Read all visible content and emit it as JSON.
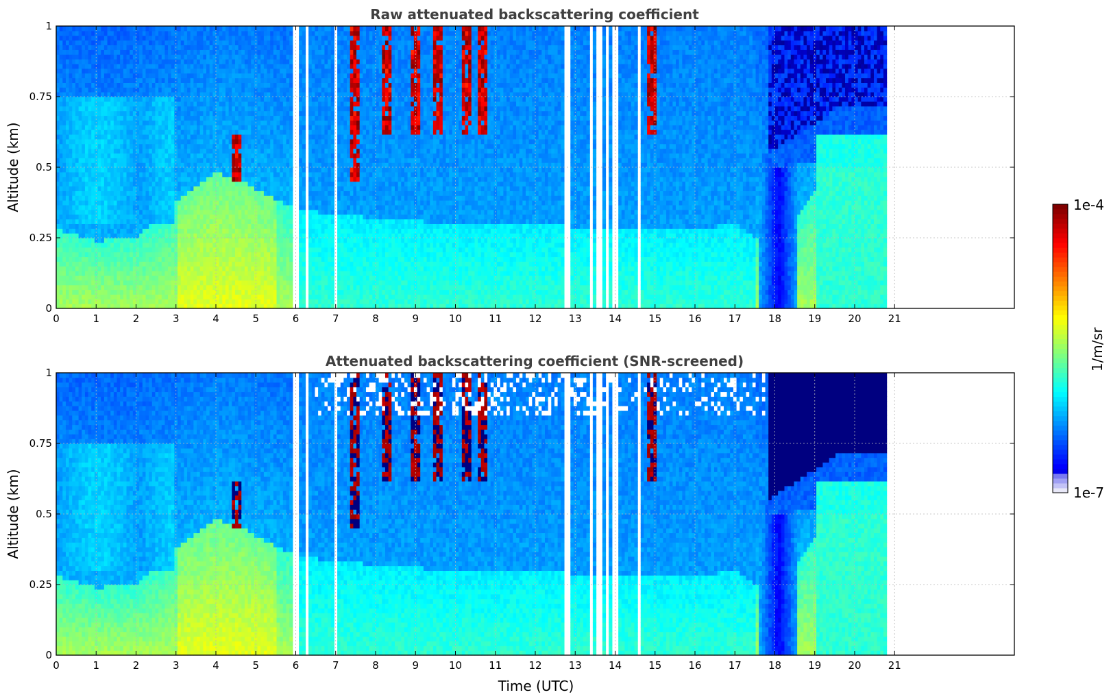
{
  "chart_data": [
    {
      "type": "heatmap",
      "title": "Raw attenuated backscattering coefficient",
      "xlabel": "",
      "ylabel": "Altitude (km)",
      "xlim": [
        0,
        24
      ],
      "ylim": [
        0,
        1
      ],
      "x_ticks": [
        "0",
        "1",
        "2",
        "3",
        "4",
        "5",
        "6",
        "7",
        "8",
        "9",
        "10",
        "11",
        "12",
        "13",
        "14",
        "15",
        "16",
        "17",
        "18",
        "19",
        "20",
        "21"
      ],
      "y_ticks": [
        "0",
        "0.25",
        "0.5",
        "0.75",
        "1"
      ],
      "data_end_time": 20.8,
      "grid": true,
      "colormap": "jet",
      "screened": false,
      "features": {
        "boundary_layer_top_km": [
          [
            0,
            0.28
          ],
          [
            1,
            0.24
          ],
          [
            2,
            0.25
          ],
          [
            3,
            0.38
          ],
          [
            4,
            0.48
          ],
          [
            4.6,
            0.46
          ],
          [
            5,
            0.42
          ],
          [
            6,
            0.35
          ],
          [
            8,
            0.32
          ],
          [
            10,
            0.3
          ],
          [
            12,
            0.3
          ],
          [
            14,
            0.28
          ],
          [
            16,
            0.28
          ],
          [
            17,
            0.3
          ],
          [
            18,
            0.2
          ],
          [
            19,
            0.42
          ],
          [
            20,
            0.45
          ],
          [
            20.8,
            0.45
          ]
        ],
        "high_cloud_times_utc": [
          4.55,
          7.5,
          8.3,
          9.0,
          9.6,
          10.3,
          10.7,
          14.9
        ],
        "gap_times_utc": [
          6.0,
          6.3,
          7.0,
          12.8,
          13.4,
          13.6,
          13.8,
          14.0,
          14.6
        ],
        "noisy_region_start_utc": 17.8
      }
    },
    {
      "type": "heatmap",
      "title": "Attenuated backscattering coefficient (SNR-screened)",
      "xlabel": "Time (UTC)",
      "ylabel": "Altitude (km)",
      "xlim": [
        0,
        24
      ],
      "ylim": [
        0,
        1
      ],
      "x_ticks": [
        "0",
        "1",
        "2",
        "3",
        "4",
        "5",
        "6",
        "7",
        "8",
        "9",
        "10",
        "11",
        "12",
        "13",
        "14",
        "15",
        "16",
        "17",
        "18",
        "19",
        "20",
        "21"
      ],
      "y_ticks": [
        "0",
        "0.25",
        "0.5",
        "0.75",
        "1"
      ],
      "data_end_time": 20.8,
      "grid": true,
      "colormap": "jet",
      "screened": true
    }
  ],
  "colorbar": {
    "max_label": "1e-4",
    "min_label": "1e-7",
    "label": "1/m/sr",
    "scale": "log",
    "range": [
      1e-07,
      0.0001
    ]
  }
}
